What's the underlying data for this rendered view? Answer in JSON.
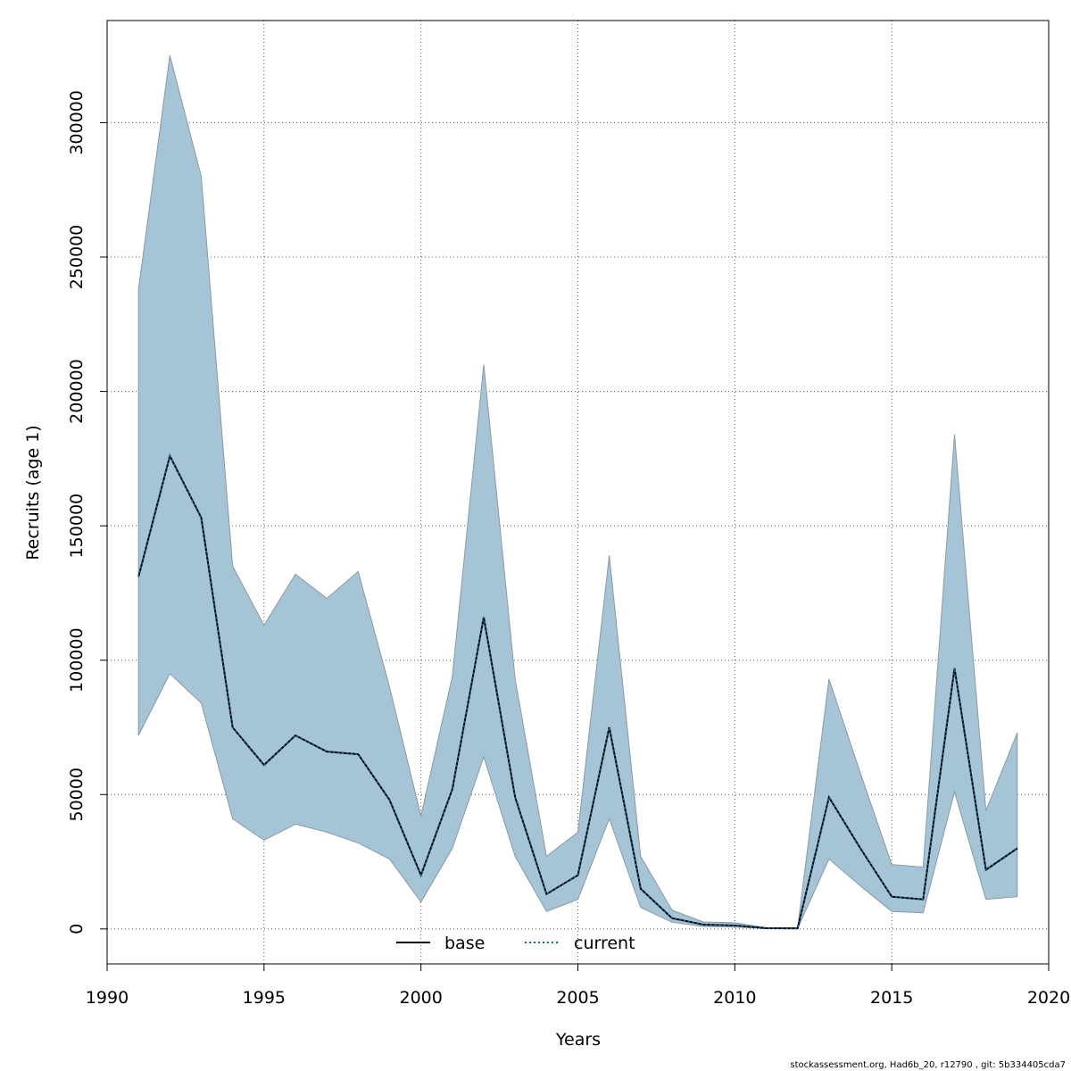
{
  "chart_data": {
    "type": "area",
    "xlabel": "Years",
    "ylabel": "Recruits (age 1)",
    "xlim": [
      1990,
      2020
    ],
    "ylim": [
      -13000,
      338000
    ],
    "x_ticks": [
      1990,
      1995,
      2000,
      2005,
      2010,
      2015,
      2020
    ],
    "y_ticks": [
      0,
      50000,
      100000,
      150000,
      200000,
      250000,
      300000
    ],
    "grid": true,
    "band_color": "#a5c4d5",
    "band_edge_color": "#8a9aa3",
    "years": [
      1991,
      1992,
      1993,
      1994,
      1995,
      1996,
      1997,
      1998,
      1999,
      2000,
      2001,
      2002,
      2003,
      2004,
      2005,
      2006,
      2007,
      2008,
      2009,
      2010,
      2011,
      2012,
      2013,
      2014,
      2015,
      2016,
      2017,
      2018,
      2019
    ],
    "series": [
      {
        "name": "base",
        "style": "solid",
        "color": "#000000",
        "upper": [
          238000,
          325000,
          280000,
          135000,
          113000,
          132000,
          123000,
          133000,
          90000,
          42000,
          94000,
          210000,
          93000,
          27000,
          36000,
          139000,
          27000,
          7000,
          2600,
          2300,
          500,
          400,
          93000,
          58000,
          24000,
          23000,
          184000,
          44000,
          73000
        ],
        "lower": [
          72000,
          95000,
          84000,
          41000,
          33000,
          39000,
          36000,
          32000,
          26000,
          10000,
          30000,
          64000,
          27000,
          6500,
          11000,
          41000,
          8000,
          2500,
          900,
          700,
          150,
          130,
          26000,
          16000,
          6500,
          6000,
          51000,
          11000,
          12000
        ],
        "values": [
          131000,
          176000,
          153000,
          75000,
          61000,
          72000,
          66000,
          65000,
          48000,
          20000,
          52000,
          116000,
          49000,
          13000,
          20000,
          75000,
          15000,
          4000,
          1600,
          1300,
          300,
          250,
          49000,
          30000,
          12000,
          11000,
          97000,
          22000,
          30000
        ]
      },
      {
        "name": "current",
        "style": "dotted",
        "color": "#1f5f8b",
        "values": [
          131000,
          176000,
          153000,
          75000,
          61000,
          72000,
          66000,
          65000,
          48000,
          20000,
          52000,
          116000,
          49000,
          13000,
          20000,
          75000,
          15000,
          4000,
          1600,
          1300,
          300,
          250,
          49000,
          30000,
          12000,
          11000,
          97000,
          22000,
          30000
        ]
      }
    ],
    "legend": {
      "position": "bottom",
      "entries": [
        "base",
        "current"
      ]
    }
  },
  "footer": {
    "text": "stockassessment.org, Had6b_20, r12790 , git: 5b334405cda7"
  }
}
